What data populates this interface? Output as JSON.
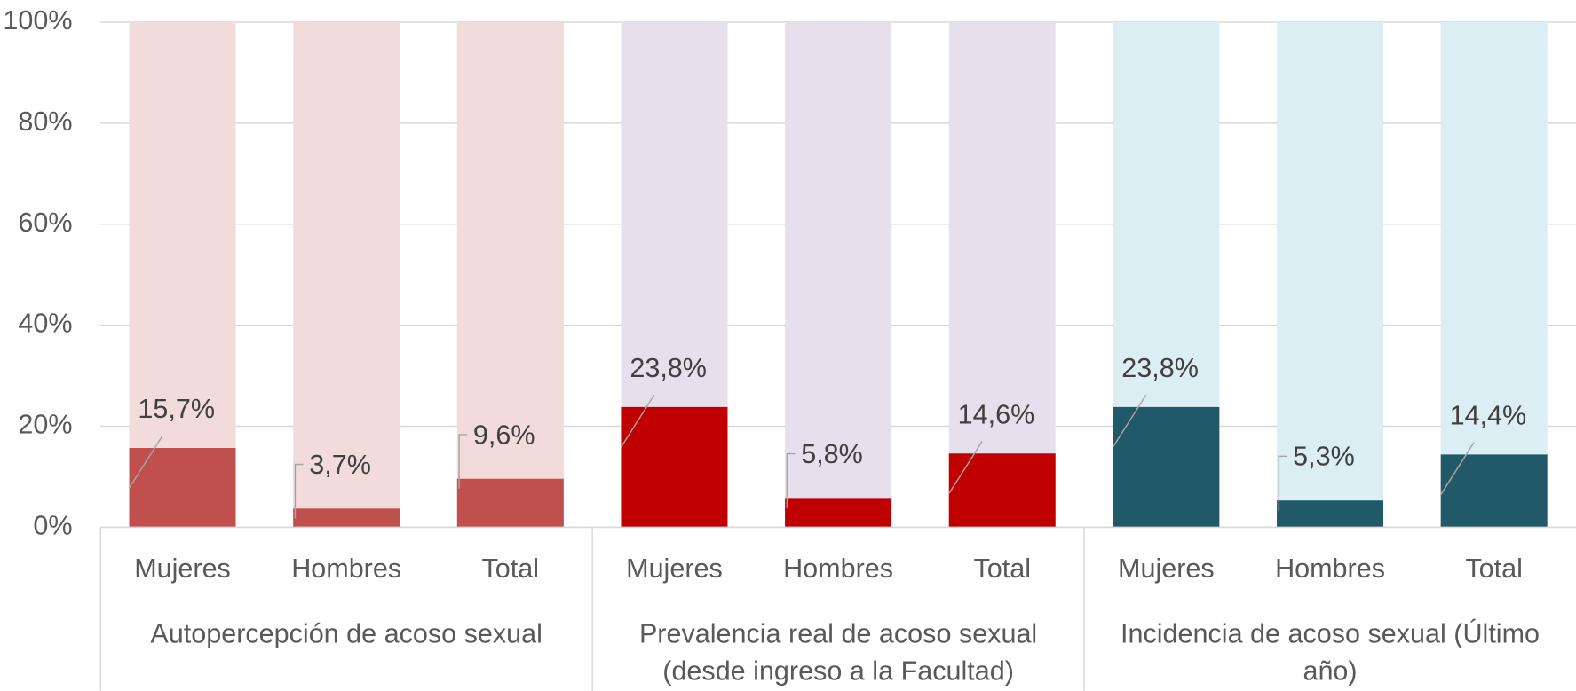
{
  "chart_data": {
    "type": "bar",
    "categories": [
      "Mujeres",
      "Hombres",
      "Total",
      "Mujeres",
      "Hombres",
      "Total",
      "Mujeres",
      "Hombres",
      "Total"
    ],
    "groups": [
      {
        "label": [
          "Autopercepción de acoso sexual"
        ]
      },
      {
        "label": [
          "Prevalencia real de acoso sexual",
          "(desde ingreso a la Facultad)"
        ]
      },
      {
        "label": [
          "Incidencia de acoso sexual (Último",
          "año)"
        ]
      }
    ],
    "values": [
      15.7,
      3.7,
      9.6,
      23.8,
      5.8,
      14.6,
      23.8,
      5.3,
      14.4
    ],
    "value_labels": [
      "15,7%",
      "3,7%",
      "9,6%",
      "23,8%",
      "5,8%",
      "14,6%",
      "23,8%",
      "5,3%",
      "14,4%"
    ],
    "colors": [
      "#c0504d",
      "#c0504d",
      "#c0504d",
      "#c00000",
      "#c00000",
      "#c00000",
      "#215968",
      "#215968",
      "#215968"
    ],
    "background_values": [
      100,
      100,
      100,
      100,
      100,
      100,
      100,
      100,
      100
    ],
    "background_colors": [
      "#f2dcdb",
      "#f2dcdb",
      "#f2dcdb",
      "#e6e0ec",
      "#e6e0ec",
      "#e6e0ec",
      "#dbeef4",
      "#dbeef4",
      "#dbeef4"
    ],
    "ylim": [
      0,
      100
    ],
    "yticks": [
      {
        "value": 0,
        "label": "0%"
      },
      {
        "value": 20,
        "label": "20%"
      },
      {
        "value": 40,
        "label": "40%"
      },
      {
        "value": 60,
        "label": "60%"
      },
      {
        "value": 80,
        "label": "80%"
      },
      {
        "value": 100,
        "label": "100%"
      }
    ],
    "grid": true
  }
}
